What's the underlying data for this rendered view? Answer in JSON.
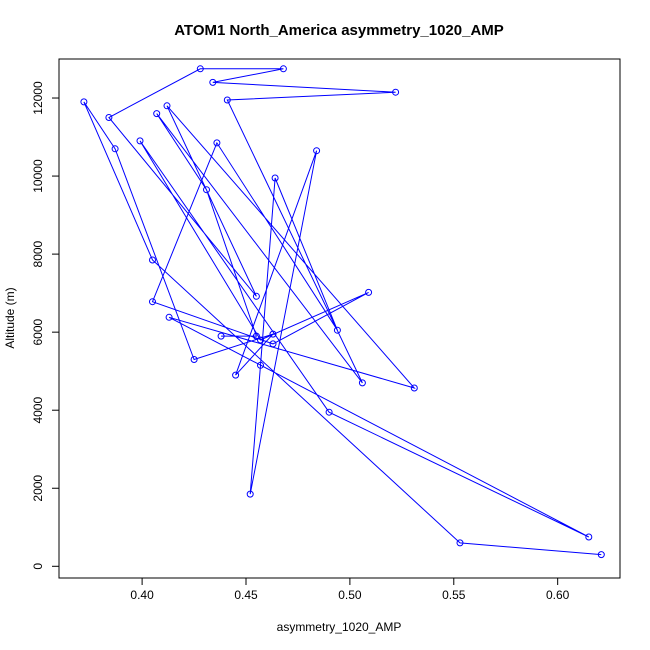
{
  "chart_data": {
    "type": "line",
    "title": "ATOM1 North_America asymmetry_1020_AMP",
    "xlabel": "asymmetry_1020_AMP",
    "ylabel": "Altitude (m)",
    "xlim": [
      0.36,
      0.63
    ],
    "ylim": [
      -300,
      13000
    ],
    "xticks": [
      0.4,
      0.45,
      0.5,
      0.55,
      0.6
    ],
    "xtick_labels": [
      "0.40",
      "0.45",
      "0.50",
      "0.55",
      "0.60"
    ],
    "yticks": [
      0,
      2000,
      4000,
      6000,
      8000,
      10000,
      12000
    ],
    "ytick_labels": [
      "0",
      "2000",
      "4000",
      "6000",
      "8000",
      "10000",
      "12000"
    ],
    "grid": false,
    "line_color": "#0000ff",
    "marker": "open-circle",
    "series": [
      {
        "x": [
          0.621,
          0.553,
          0.405,
          0.372,
          0.387,
          0.425,
          0.463,
          0.445,
          0.484,
          0.452,
          0.457,
          0.464,
          0.494,
          0.436,
          0.405,
          0.463,
          0.509,
          0.457,
          0.399,
          0.49,
          0.615,
          0.413,
          0.531,
          0.412,
          0.455,
          0.384,
          0.428,
          0.468,
          0.434,
          0.522,
          0.441,
          0.506,
          0.407,
          0.431,
          0.455,
          0.438
        ],
        "y": [
          300,
          600,
          7850,
          11900,
          10700,
          5300,
          5950,
          4900,
          10650,
          1850,
          5150,
          9950,
          6050,
          10850,
          6780,
          5700,
          7020,
          5800,
          10900,
          3950,
          750,
          6380,
          4570,
          11800,
          6920,
          11500,
          12750,
          12750,
          12400,
          12150,
          11950,
          4700,
          11600,
          9650,
          5900,
          5900
        ]
      }
    ]
  }
}
